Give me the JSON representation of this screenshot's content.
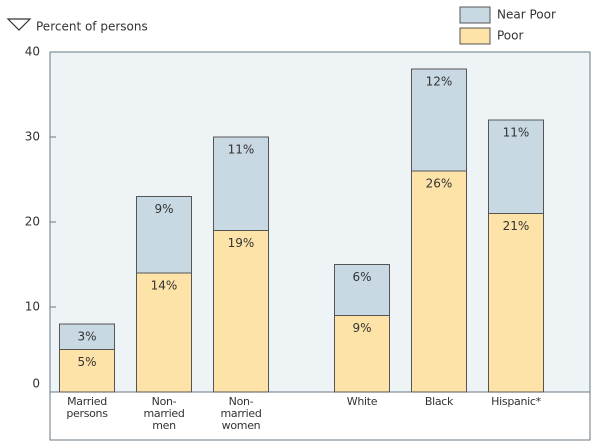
{
  "chart_data": {
    "type": "stacked-bar",
    "y_label": "Percent of persons",
    "categories": [
      "Married\npersons",
      "Non-\nmarried\nmen",
      "Non-\nmarried\nwomen",
      "White",
      "Black",
      "Hispanic*"
    ],
    "series": [
      {
        "name": "Poor",
        "color": "#fde3a7",
        "values": [
          5,
          14,
          19,
          9,
          26,
          21
        ],
        "value_labels": [
          "5%",
          "14%",
          "19%",
          "9%",
          "26%",
          "21%"
        ]
      },
      {
        "name": "Near Poor",
        "color": "#c8d9e4",
        "values": [
          3,
          9,
          11,
          6,
          12,
          11
        ],
        "value_labels": [
          "3%",
          "9%",
          "11%",
          "6%",
          "12%",
          "11%"
        ]
      }
    ],
    "ylim": [
      0,
      40
    ],
    "yticks": [
      0,
      10,
      20,
      30,
      40
    ]
  }
}
